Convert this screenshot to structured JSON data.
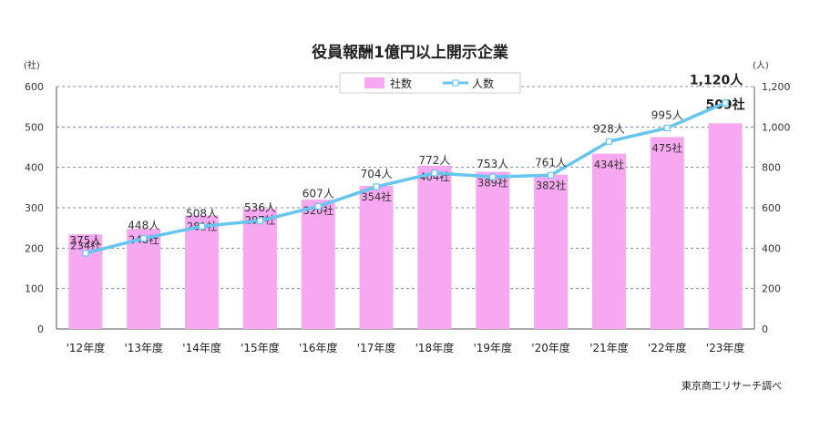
{
  "chart_data": {
    "type": "bar+line",
    "title": "役員報酬1億円以上開示企業",
    "categories": [
      "'12年度",
      "'13年度",
      "'14年度",
      "'15年度",
      "'16年度",
      "'17年度",
      "'18年度",
      "'19年度",
      "'20年度",
      "'21年度",
      "'22年度",
      "'23年度"
    ],
    "series": [
      {
        "name": "社数",
        "type": "bar",
        "axis": "left",
        "color": "#f7a8f0",
        "values": [
          234,
          248,
          281,
          297,
          320,
          354,
          404,
          389,
          382,
          434,
          475,
          509
        ],
        "labels": [
          "234社",
          "248社",
          "281社",
          "297社",
          "320社",
          "354社",
          "404社",
          "389社",
          "382社",
          "434社",
          "475社",
          "509社"
        ]
      },
      {
        "name": "人数",
        "type": "line",
        "axis": "right",
        "color": "#66c6f0",
        "values": [
          375,
          448,
          508,
          536,
          607,
          704,
          772,
          753,
          761,
          928,
          995,
          1120
        ],
        "labels": [
          "375人",
          "448人",
          "508人",
          "536人",
          "607人",
          "704人",
          "772人",
          "753人",
          "761人",
          "928人",
          "995人",
          "1,120人"
        ]
      }
    ],
    "left_axis": {
      "unit": "(社)",
      "ylim": [
        0,
        600
      ],
      "ticks": [
        "0",
        "100",
        "200",
        "300",
        "400",
        "500",
        "600"
      ]
    },
    "right_axis": {
      "unit": "(人)",
      "ylim": [
        0,
        1200
      ],
      "ticks": [
        "0",
        "200",
        "400",
        "600",
        "800",
        "1,000",
        "1,200"
      ]
    },
    "grid": "horizontal-dashed",
    "legend": "top-center",
    "source": "東京商工リサーチ調べ"
  }
}
